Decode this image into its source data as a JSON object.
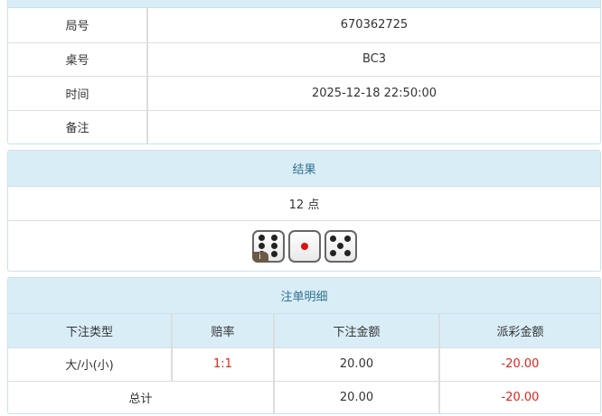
{
  "info": {
    "rows": [
      {
        "label": "局号",
        "value": "670362725"
      },
      {
        "label": "桌号",
        "value": "BC3"
      },
      {
        "label": "时间",
        "value": "2025-12-18 22:50:00"
      },
      {
        "label": "备注",
        "value": ""
      }
    ]
  },
  "result": {
    "title": "结果",
    "points": "12 点",
    "dice": [
      6,
      1,
      5
    ],
    "info_badge": "i"
  },
  "bets": {
    "title": "注单明细",
    "headers": [
      "下注类型",
      "赔率",
      "下注金额",
      "派彩金额"
    ],
    "rows": [
      {
        "type": "大/小(小)",
        "odds": "1:1",
        "amount": "20.00",
        "payout": "-20.00"
      }
    ],
    "total": {
      "label": "总计",
      "amount": "20.00",
      "payout": "-20.00"
    }
  },
  "colors": {
    "header_bg": "#d9edf7",
    "header_text": "#31708f",
    "negative": "#e8201a"
  }
}
